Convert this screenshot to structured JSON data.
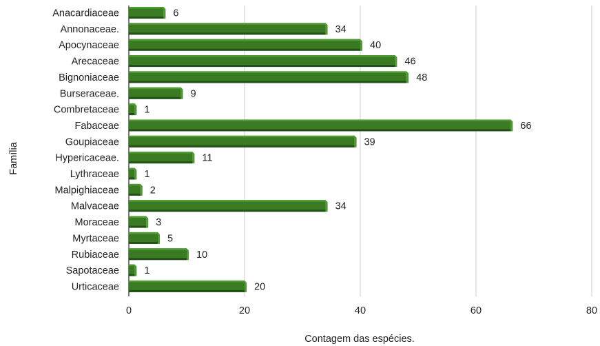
{
  "chart_data": {
    "type": "bar",
    "orientation": "horizontal",
    "categories": [
      "Anacardiaceae",
      "Annonaceae.",
      "Apocynaceae",
      "Arecaceae",
      "Bignoniaceae",
      "Burseraceae.",
      "Combretaceae",
      "Fabaceae",
      "Goupiaceae",
      "Hypericaceae.",
      "Lythraceae",
      "Malpighiaceae",
      "Malvaceae",
      "Moraceae",
      "Myrtaceae",
      "Rubiaceae",
      "Sapotaceae",
      "Urticaceae"
    ],
    "values": [
      6,
      34,
      40,
      46,
      48,
      9,
      1,
      66,
      39,
      11,
      1,
      2,
      34,
      3,
      5,
      10,
      1,
      20
    ],
    "xlabel": "Contagem das espécies.",
    "ylabel": "Família",
    "xlim": [
      0,
      80
    ],
    "xticks": [
      0,
      20,
      40,
      60,
      80
    ],
    "grid": "vertical",
    "legend": "none",
    "data_labels": true,
    "colors": {
      "bar_front": "#3a7a22",
      "bar_top": "#4f9a33",
      "bar_side": "#2c5e19",
      "bar_bottom": "#24501a",
      "grid": "#cccccc",
      "axis": "#333333"
    }
  }
}
